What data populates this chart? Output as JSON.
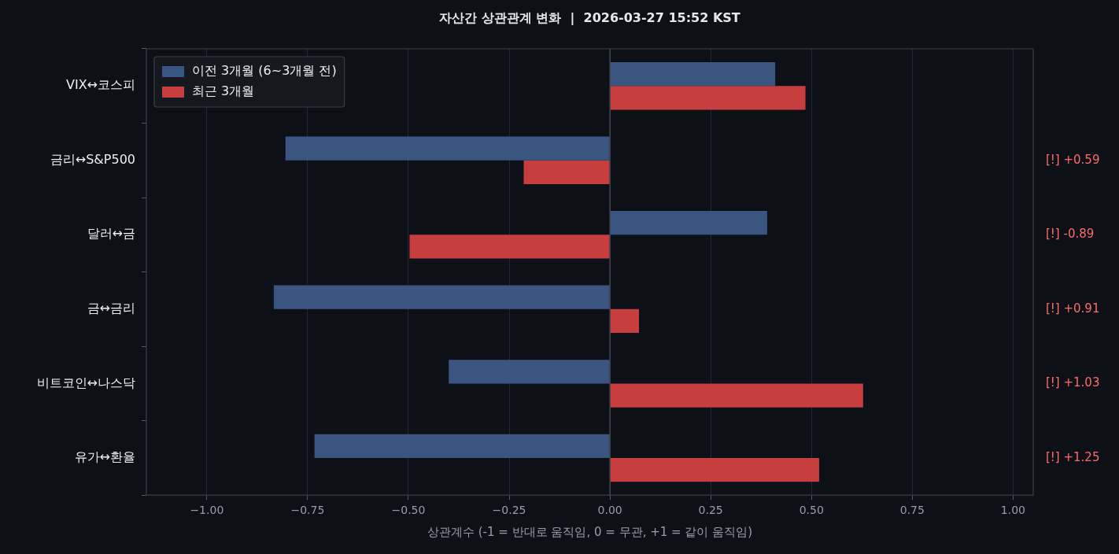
{
  "chart_data": {
    "type": "bar",
    "orientation": "horizontal",
    "title": "자산간 상관관계 변화  |  2026-03-27 15:52 KST",
    "xlabel": "상관계수 (-1 = 반대로 움직임, 0 = 무관, +1 = 같이 움직임)",
    "categories": [
      "VIX↔코스피",
      "금리↔S&P500",
      "달러↔금",
      "금↔금리",
      "비트코인↔나스닥",
      "유가↔환율"
    ],
    "series": [
      {
        "name": "이전 3개월 (6~3개월 전)",
        "color": "#3a5580",
        "values": [
          0.41,
          -0.805,
          0.39,
          -0.834,
          -0.4,
          -0.733
        ]
      },
      {
        "name": "최근 3개월",
        "color": "#c73e3e",
        "values": [
          0.485,
          -0.214,
          -0.497,
          0.072,
          0.628,
          0.519
        ]
      }
    ],
    "xlim": [
      -1.15,
      1.05
    ],
    "xticks": [
      {
        "value": -1,
        "label": "−1.00"
      },
      {
        "value": -0.75,
        "label": "−0.75"
      },
      {
        "value": -0.5,
        "label": "−0.50"
      },
      {
        "value": -0.25,
        "label": "−0.25"
      },
      {
        "value": 0,
        "label": "0.00"
      },
      {
        "value": 0.25,
        "label": "0.25"
      },
      {
        "value": 0.5,
        "label": "0.50"
      },
      {
        "value": 0.75,
        "label": "0.75"
      },
      {
        "value": 1,
        "label": "1.00"
      }
    ],
    "ref_lines": [
      {
        "axis": "x",
        "value": 0,
        "color": "#4a4f57"
      }
    ],
    "annotations": [
      "[!] +0.59",
      "[!] -0.89",
      "[!] +0.91",
      "[!] +1.03",
      "[!] +1.25"
    ],
    "grid": "x",
    "legend": "top left"
  }
}
